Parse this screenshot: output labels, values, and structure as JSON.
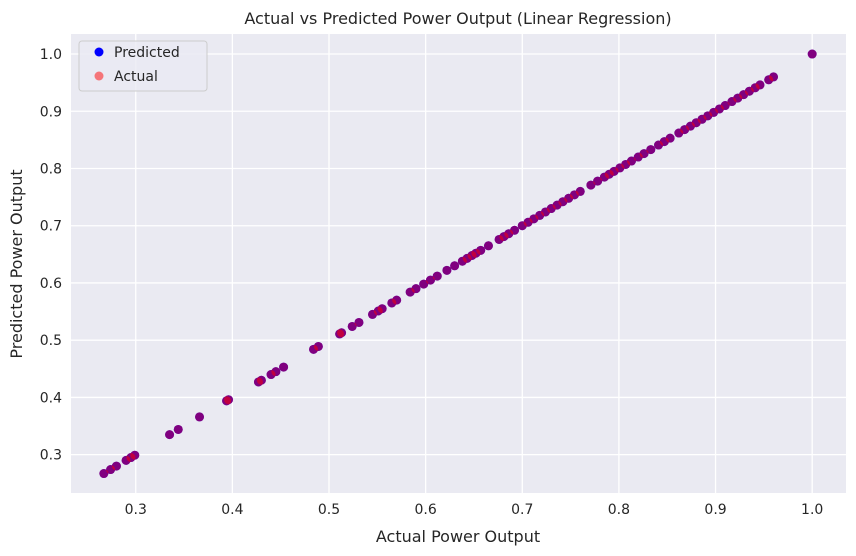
{
  "chart_data": {
    "type": "scatter",
    "title": "Actual vs Predicted Power Output (Linear Regression)",
    "xlabel": "Actual Power Output",
    "ylabel": "Predicted Power Output",
    "xlim": [
      0.233,
      1.035
    ],
    "ylim": [
      0.233,
      1.035
    ],
    "xticks": [
      0.3,
      0.4,
      0.5,
      0.6,
      0.7,
      0.8,
      0.9,
      1.0
    ],
    "yticks": [
      0.3,
      0.4,
      0.5,
      0.6,
      0.7,
      0.8,
      0.9,
      1.0
    ],
    "xtick_labels": [
      "0.3",
      "0.4",
      "0.5",
      "0.6",
      "0.7",
      "0.8",
      "0.9",
      "1.0"
    ],
    "ytick_labels": [
      "0.3",
      "0.4",
      "0.5",
      "0.6",
      "0.7",
      "0.8",
      "0.9",
      "1.0"
    ],
    "grid": true,
    "legend_position": "top-left",
    "series": [
      {
        "name": "Predicted",
        "color": "#0000ff",
        "alpha": 1.0,
        "points": [
          [
            0.267,
            0.267
          ],
          [
            0.274,
            0.274
          ],
          [
            0.28,
            0.28
          ],
          [
            0.29,
            0.29
          ],
          [
            0.295,
            0.295
          ],
          [
            0.299,
            0.299
          ],
          [
            0.335,
            0.335
          ],
          [
            0.344,
            0.344
          ],
          [
            0.366,
            0.366
          ],
          [
            0.394,
            0.394
          ],
          [
            0.396,
            0.396
          ],
          [
            0.427,
            0.427
          ],
          [
            0.43,
            0.43
          ],
          [
            0.44,
            0.44
          ],
          [
            0.445,
            0.445
          ],
          [
            0.453,
            0.453
          ],
          [
            0.484,
            0.484
          ],
          [
            0.489,
            0.489
          ],
          [
            0.511,
            0.511
          ],
          [
            0.513,
            0.513
          ],
          [
            0.524,
            0.524
          ],
          [
            0.531,
            0.531
          ],
          [
            0.545,
            0.545
          ],
          [
            0.551,
            0.551
          ],
          [
            0.555,
            0.555
          ],
          [
            0.565,
            0.565
          ],
          [
            0.57,
            0.57
          ],
          [
            0.584,
            0.584
          ],
          [
            0.59,
            0.59
          ],
          [
            0.598,
            0.598
          ],
          [
            0.605,
            0.605
          ],
          [
            0.612,
            0.612
          ],
          [
            0.622,
            0.622
          ],
          [
            0.63,
            0.63
          ],
          [
            0.638,
            0.638
          ],
          [
            0.643,
            0.643
          ],
          [
            0.648,
            0.648
          ],
          [
            0.652,
            0.652
          ],
          [
            0.657,
            0.657
          ],
          [
            0.665,
            0.665
          ],
          [
            0.676,
            0.676
          ],
          [
            0.681,
            0.681
          ],
          [
            0.686,
            0.686
          ],
          [
            0.692,
            0.692
          ],
          [
            0.7,
            0.7
          ],
          [
            0.706,
            0.706
          ],
          [
            0.712,
            0.712
          ],
          [
            0.718,
            0.718
          ],
          [
            0.724,
            0.724
          ],
          [
            0.73,
            0.73
          ],
          [
            0.736,
            0.736
          ],
          [
            0.742,
            0.742
          ],
          [
            0.748,
            0.748
          ],
          [
            0.754,
            0.754
          ],
          [
            0.76,
            0.76
          ],
          [
            0.771,
            0.771
          ],
          [
            0.778,
            0.778
          ],
          [
            0.785,
            0.785
          ],
          [
            0.79,
            0.79
          ],
          [
            0.795,
            0.795
          ],
          [
            0.801,
            0.801
          ],
          [
            0.807,
            0.807
          ],
          [
            0.813,
            0.813
          ],
          [
            0.82,
            0.82
          ],
          [
            0.826,
            0.826
          ],
          [
            0.833,
            0.833
          ],
          [
            0.841,
            0.841
          ],
          [
            0.847,
            0.847
          ],
          [
            0.853,
            0.853
          ],
          [
            0.862,
            0.862
          ],
          [
            0.868,
            0.868
          ],
          [
            0.874,
            0.874
          ],
          [
            0.88,
            0.88
          ],
          [
            0.886,
            0.886
          ],
          [
            0.892,
            0.892
          ],
          [
            0.898,
            0.898
          ],
          [
            0.904,
            0.904
          ],
          [
            0.91,
            0.91
          ],
          [
            0.917,
            0.917
          ],
          [
            0.923,
            0.923
          ],
          [
            0.929,
            0.929
          ],
          [
            0.935,
            0.935
          ],
          [
            0.941,
            0.941
          ],
          [
            0.946,
            0.946
          ],
          [
            0.955,
            0.955
          ],
          [
            0.96,
            0.96
          ],
          [
            1.0,
            1.0
          ]
        ]
      },
      {
        "name": "Actual",
        "color": "#ff0000",
        "alpha": 0.5,
        "points": [
          [
            0.267,
            0.267
          ],
          [
            0.274,
            0.274
          ],
          [
            0.28,
            0.28
          ],
          [
            0.29,
            0.29
          ],
          [
            0.295,
            0.295
          ],
          [
            0.299,
            0.299
          ],
          [
            0.335,
            0.335
          ],
          [
            0.344,
            0.344
          ],
          [
            0.366,
            0.366
          ],
          [
            0.394,
            0.394
          ],
          [
            0.396,
            0.396
          ],
          [
            0.427,
            0.427
          ],
          [
            0.43,
            0.43
          ],
          [
            0.44,
            0.44
          ],
          [
            0.445,
            0.445
          ],
          [
            0.453,
            0.453
          ],
          [
            0.484,
            0.484
          ],
          [
            0.489,
            0.489
          ],
          [
            0.511,
            0.511
          ],
          [
            0.513,
            0.513
          ],
          [
            0.524,
            0.524
          ],
          [
            0.531,
            0.531
          ],
          [
            0.545,
            0.545
          ],
          [
            0.551,
            0.551
          ],
          [
            0.555,
            0.555
          ],
          [
            0.565,
            0.565
          ],
          [
            0.57,
            0.57
          ],
          [
            0.584,
            0.584
          ],
          [
            0.59,
            0.59
          ],
          [
            0.598,
            0.598
          ],
          [
            0.605,
            0.605
          ],
          [
            0.612,
            0.612
          ],
          [
            0.622,
            0.622
          ],
          [
            0.63,
            0.63
          ],
          [
            0.638,
            0.638
          ],
          [
            0.643,
            0.643
          ],
          [
            0.648,
            0.648
          ],
          [
            0.652,
            0.652
          ],
          [
            0.657,
            0.657
          ],
          [
            0.665,
            0.665
          ],
          [
            0.676,
            0.676
          ],
          [
            0.681,
            0.681
          ],
          [
            0.686,
            0.686
          ],
          [
            0.692,
            0.692
          ],
          [
            0.7,
            0.7
          ],
          [
            0.706,
            0.706
          ],
          [
            0.712,
            0.712
          ],
          [
            0.718,
            0.718
          ],
          [
            0.724,
            0.724
          ],
          [
            0.73,
            0.73
          ],
          [
            0.736,
            0.736
          ],
          [
            0.742,
            0.742
          ],
          [
            0.748,
            0.748
          ],
          [
            0.754,
            0.754
          ],
          [
            0.76,
            0.76
          ],
          [
            0.771,
            0.771
          ],
          [
            0.778,
            0.778
          ],
          [
            0.785,
            0.785
          ],
          [
            0.79,
            0.79
          ],
          [
            0.795,
            0.795
          ],
          [
            0.801,
            0.801
          ],
          [
            0.807,
            0.807
          ],
          [
            0.813,
            0.813
          ],
          [
            0.82,
            0.82
          ],
          [
            0.826,
            0.826
          ],
          [
            0.833,
            0.833
          ],
          [
            0.841,
            0.841
          ],
          [
            0.847,
            0.847
          ],
          [
            0.853,
            0.853
          ],
          [
            0.862,
            0.862
          ],
          [
            0.868,
            0.868
          ],
          [
            0.874,
            0.874
          ],
          [
            0.88,
            0.88
          ],
          [
            0.886,
            0.886
          ],
          [
            0.892,
            0.892
          ],
          [
            0.898,
            0.898
          ],
          [
            0.904,
            0.904
          ],
          [
            0.91,
            0.91
          ],
          [
            0.917,
            0.917
          ],
          [
            0.923,
            0.923
          ],
          [
            0.929,
            0.929
          ],
          [
            0.935,
            0.935
          ],
          [
            0.941,
            0.941
          ],
          [
            0.946,
            0.946
          ],
          [
            0.955,
            0.955
          ],
          [
            0.96,
            0.96
          ],
          [
            1.0,
            1.0
          ]
        ]
      }
    ],
    "colors": {
      "plot_background": "#eaeaf2",
      "grid": "#ffffff"
    }
  }
}
